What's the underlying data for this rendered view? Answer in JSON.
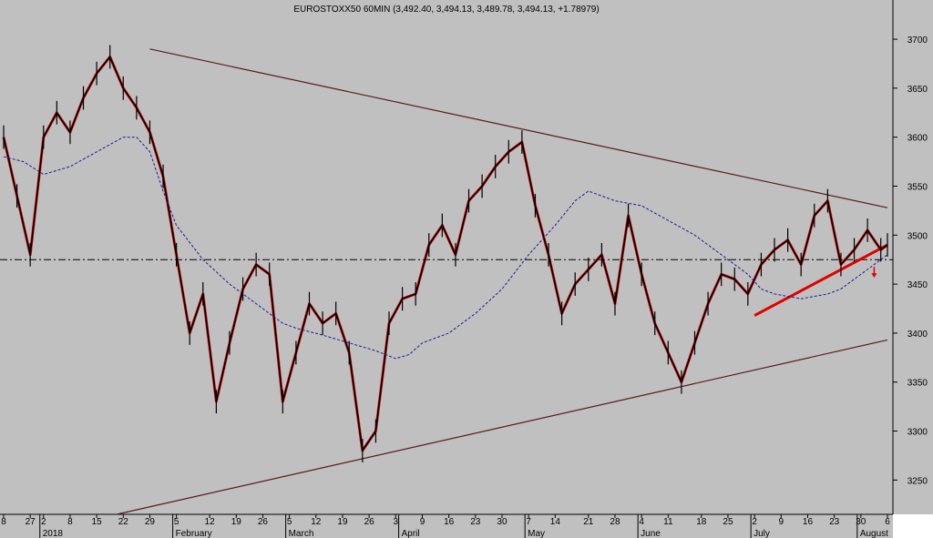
{
  "chart_data": {
    "type": "line",
    "title": "EUROSTOXX50 60MIN (3,492.40, 3,494.13, 3,489.78, 3,494.13, +1.78979)",
    "xlabel": "",
    "ylabel": "",
    "ylim": [
      3215,
      3740
    ],
    "yticks": [
      3250,
      3300,
      3350,
      3400,
      3450,
      3500,
      3550,
      3600,
      3650,
      3700
    ],
    "grid": false,
    "x_day_labels": [
      "8",
      "27",
      "2",
      "8",
      "15",
      "22",
      "29",
      "5",
      "12",
      "19",
      "26",
      "5",
      "12",
      "19",
      "26",
      "3",
      "9",
      "16",
      "23",
      "30",
      "7",
      "14",
      "21",
      "28",
      "4",
      "11",
      "18",
      "25",
      "2",
      "9",
      "16",
      "23",
      "30",
      "6"
    ],
    "x_month_labels": [
      "2018",
      "February",
      "March",
      "April",
      "May",
      "June",
      "July",
      "August"
    ],
    "x_index_range": [
      0,
      133
    ],
    "x_day_label_index": [
      0,
      4,
      6,
      10,
      14,
      18,
      22,
      26,
      31,
      35,
      39,
      43,
      47,
      51,
      55,
      59,
      63,
      67,
      71,
      75,
      79,
      83,
      88,
      92,
      96,
      100,
      105,
      109,
      113,
      117,
      121,
      125,
      129,
      133
    ],
    "x_month_label_index": [
      6,
      26,
      43,
      60,
      79,
      96,
      113,
      129
    ],
    "series": [
      {
        "style": "price",
        "color": "#000000",
        "x": [
          0,
          2,
          4,
          6,
          8,
          10,
          12,
          14,
          16,
          18,
          20,
          22,
          24,
          26,
          28,
          30,
          32,
          34,
          36,
          38,
          40,
          42,
          44,
          46,
          48,
          50,
          52,
          54,
          56,
          58,
          60,
          62,
          64,
          66,
          68,
          70,
          72,
          74,
          76,
          78,
          80,
          82,
          84,
          86,
          88,
          90,
          92,
          94,
          96,
          98,
          100,
          102,
          104,
          106,
          108,
          110,
          112,
          114,
          116,
          118,
          120,
          122,
          124,
          126,
          128,
          130,
          132,
          133
        ],
        "values": [
          3600,
          3540,
          3480,
          3600,
          3625,
          3605,
          3640,
          3665,
          3682,
          3650,
          3630,
          3605,
          3560,
          3480,
          3400,
          3440,
          3330,
          3390,
          3445,
          3470,
          3460,
          3330,
          3380,
          3430,
          3410,
          3420,
          3380,
          3280,
          3300,
          3410,
          3435,
          3440,
          3490,
          3510,
          3480,
          3535,
          3550,
          3570,
          3585,
          3595,
          3530,
          3480,
          3420,
          3450,
          3465,
          3480,
          3430,
          3520,
          3460,
          3410,
          3380,
          3350,
          3390,
          3430,
          3460,
          3455,
          3440,
          3470,
          3485,
          3495,
          3470,
          3520,
          3535,
          3470,
          3485,
          3505,
          3485,
          3490
        ]
      },
      {
        "style": "moving-average",
        "color": "#1a1a99",
        "x": [
          0,
          3,
          6,
          10,
          14,
          18,
          20,
          22,
          24,
          26,
          30,
          34,
          38,
          40,
          42,
          44,
          48,
          52,
          56,
          59,
          61,
          63,
          67,
          71,
          75,
          79,
          83,
          86,
          88,
          90,
          92,
          96,
          100,
          104,
          108,
          112,
          114,
          116,
          120,
          124,
          126,
          128,
          130,
          133
        ],
        "values": [
          3580,
          3575,
          3562,
          3570,
          3585,
          3600,
          3600,
          3585,
          3545,
          3510,
          3475,
          3450,
          3430,
          3420,
          3410,
          3405,
          3398,
          3390,
          3382,
          3374,
          3378,
          3390,
          3400,
          3420,
          3445,
          3480,
          3510,
          3535,
          3545,
          3540,
          3535,
          3530,
          3515,
          3500,
          3480,
          3460,
          3445,
          3440,
          3435,
          3440,
          3445,
          3455,
          3465,
          3480
        ]
      }
    ],
    "horizontal_line": {
      "y": 3475,
      "style": "dash-dot",
      "color": "#000000"
    },
    "trendlines": [
      {
        "name_role": "upper",
        "x": [
          22,
          133
        ],
        "values": [
          3690,
          3528
        ],
        "color": "#5a1a1a"
      },
      {
        "name_role": "lower",
        "x": [
          17,
          133
        ],
        "values": [
          3215,
          3393
        ],
        "color": "#5a1a1a"
      },
      {
        "name_role": "support",
        "x": [
          113,
          133
        ],
        "values": [
          3418,
          3490
        ],
        "color": "#e00000"
      }
    ],
    "annotation_arrow": {
      "x": 131,
      "y": 3462,
      "direction": "down",
      "color": "#e00000"
    }
  }
}
